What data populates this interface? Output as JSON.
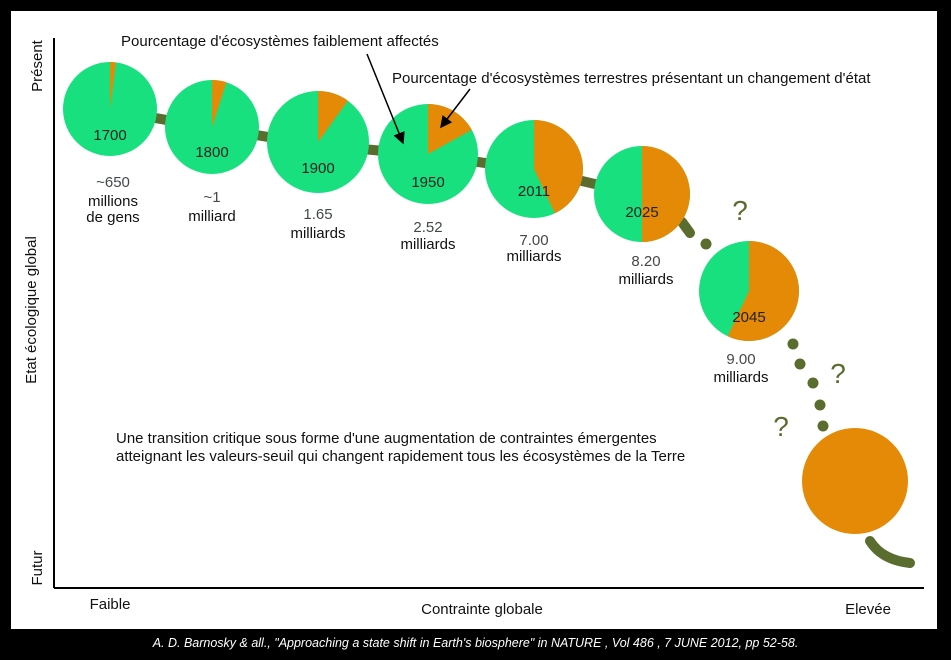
{
  "chart_data": {
    "type": "pie",
    "y_axis": {
      "label": "Etat écologique global",
      "top_label": "Présent",
      "bottom_label": "Futur"
    },
    "x_axis": {
      "label": "Contrainte globale",
      "left_label": "Faible",
      "right_label": "Elevée"
    },
    "series": [
      {
        "name": "Pourcentage d'écosystèmes faiblement affectés",
        "color": "#18e07e"
      },
      {
        "name": "Pourcentage d'écosystèmes terrestres présentant un changement d'état",
        "color": "#e58a06"
      }
    ],
    "pies": [
      {
        "year": "1700",
        "affected_fraction": 0.02,
        "population": [
          "~650",
          "millions",
          "de gens"
        ]
      },
      {
        "year": "1800",
        "affected_fraction": 0.05,
        "population": [
          "~1",
          "milliard"
        ]
      },
      {
        "year": "1900",
        "affected_fraction": 0.1,
        "population": [
          "1.65",
          "milliards"
        ]
      },
      {
        "year": "1950",
        "affected_fraction": 0.17,
        "population": [
          "2.52",
          "milliards"
        ]
      },
      {
        "year": "2011",
        "affected_fraction": 0.43,
        "population": [
          "7.00",
          "milliards"
        ]
      },
      {
        "year": "2025",
        "affected_fraction": 0.5,
        "population": [
          "8.20",
          "milliards"
        ]
      },
      {
        "year": "2045",
        "affected_fraction": 0.57,
        "population": [
          "9.00",
          "milliards"
        ]
      },
      {
        "year": "",
        "affected_fraction": 1.0,
        "population": []
      }
    ],
    "question_mark": "?",
    "annotation": [
      "Une transition critique sous forme d'une augmentation de contraintes émergentes",
      "atteignant les valeurs-seuil qui changent rapidement tous les écosystèmes de la Terre"
    ]
  },
  "colors": {
    "path": "#5a6d2e",
    "population_text": "#44484a",
    "question": "#5a6d2e"
  },
  "caption": "A. D. Barnosky & all., \"Approaching a state shift in Earth's biosphere\" in NATURE , Vol 486 , 7 JUNE 2012, pp 52-58."
}
